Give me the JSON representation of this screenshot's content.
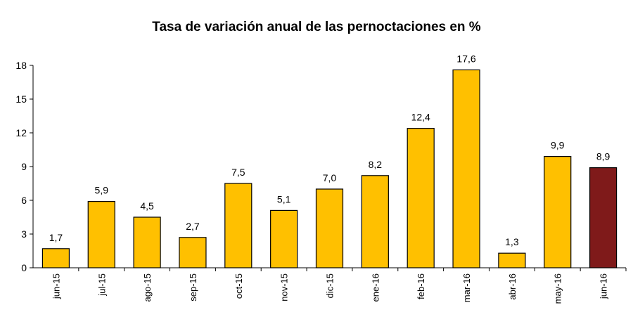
{
  "chart_data": {
    "type": "bar",
    "title": "Tasa de variación anual de las pernoctaciones en %",
    "xlabel": "",
    "ylabel": "",
    "categories": [
      "jun-15",
      "jul-15",
      "ago-15",
      "sep-15",
      "oct-15",
      "nov-15",
      "dic-15",
      "ene-16",
      "feb-16",
      "mar-16",
      "abr-16",
      "may-16",
      "jun-16"
    ],
    "values": [
      1.7,
      5.9,
      4.5,
      2.7,
      7.5,
      5.1,
      7.0,
      8.2,
      12.4,
      17.6,
      1.3,
      9.9,
      8.9
    ],
    "data_labels": [
      "1,7",
      "5,9",
      "4,5",
      "2,7",
      "7,5",
      "5,1",
      "7,0",
      "8,2",
      "12,4",
      "17,6",
      "1,3",
      "9,9",
      "8,9"
    ],
    "ylim": [
      0,
      18
    ],
    "yticks": [
      0,
      3,
      6,
      9,
      12,
      15,
      18
    ],
    "grid": false,
    "legend": "none",
    "colors": {
      "bar": "#FFC000",
      "highlight_bar": "#7F1A1A",
      "bar_outline": "#000000"
    },
    "highlight_category": "jun-16"
  }
}
